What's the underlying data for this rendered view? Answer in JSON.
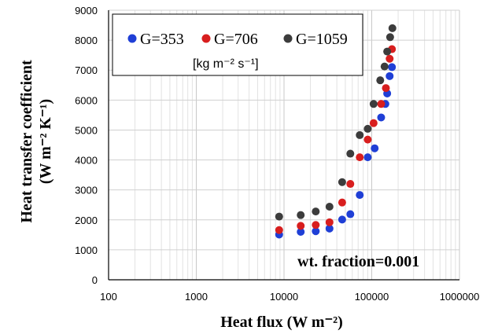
{
  "chart_data": {
    "type": "scatter",
    "title": "",
    "xlabel": "Heat flux (W m⁻²)",
    "ylabel_line1": "Heat transfer coefficient",
    "ylabel_line2": "(W m⁻² K⁻¹)",
    "x_scale": "log",
    "xlim": [
      100,
      1000000
    ],
    "ylim": [
      0,
      9000
    ],
    "x_ticks": [
      "100",
      "1000",
      "10000",
      "100000",
      "1000000"
    ],
    "y_ticks": [
      "0",
      "1000",
      "2000",
      "3000",
      "4000",
      "5000",
      "6000",
      "7000",
      "8000",
      "9000"
    ],
    "grid": true,
    "legend_position": "top-left",
    "legend_unit": "[kg m⁻² s⁻¹]",
    "annotation": "wt. fraction=0.001",
    "series": [
      {
        "name": "G=353",
        "color": "#1f3fd6",
        "points": [
          [
            8800,
            1510
          ],
          [
            15500,
            1600
          ],
          [
            23000,
            1620
          ],
          [
            33000,
            1710
          ],
          [
            46000,
            2010
          ],
          [
            57000,
            2190
          ],
          [
            73000,
            2830
          ],
          [
            90000,
            4090
          ],
          [
            108000,
            4390
          ],
          [
            128000,
            5420
          ],
          [
            143000,
            5870
          ],
          [
            150000,
            6220
          ],
          [
            160000,
            6800
          ],
          [
            170000,
            7100
          ]
        ]
      },
      {
        "name": "G=706",
        "color": "#d81e1e",
        "points": [
          [
            8800,
            1660
          ],
          [
            15500,
            1800
          ],
          [
            23000,
            1830
          ],
          [
            33000,
            1920
          ],
          [
            46000,
            2580
          ],
          [
            57000,
            3200
          ],
          [
            73000,
            4090
          ],
          [
            90000,
            4680
          ],
          [
            105000,
            5230
          ],
          [
            128000,
            5870
          ],
          [
            145000,
            6400
          ],
          [
            160000,
            7380
          ],
          [
            170000,
            7700
          ]
        ]
      },
      {
        "name": "G=1059",
        "color": "#3c3c3c",
        "points": [
          [
            8800,
            2110
          ],
          [
            15500,
            2160
          ],
          [
            23000,
            2280
          ],
          [
            33000,
            2440
          ],
          [
            46000,
            3260
          ],
          [
            57000,
            4210
          ],
          [
            73000,
            4830
          ],
          [
            90000,
            5040
          ],
          [
            105000,
            5870
          ],
          [
            125000,
            6660
          ],
          [
            140000,
            7120
          ],
          [
            150000,
            7620
          ],
          [
            162000,
            8100
          ],
          [
            172000,
            8400
          ]
        ]
      }
    ]
  }
}
